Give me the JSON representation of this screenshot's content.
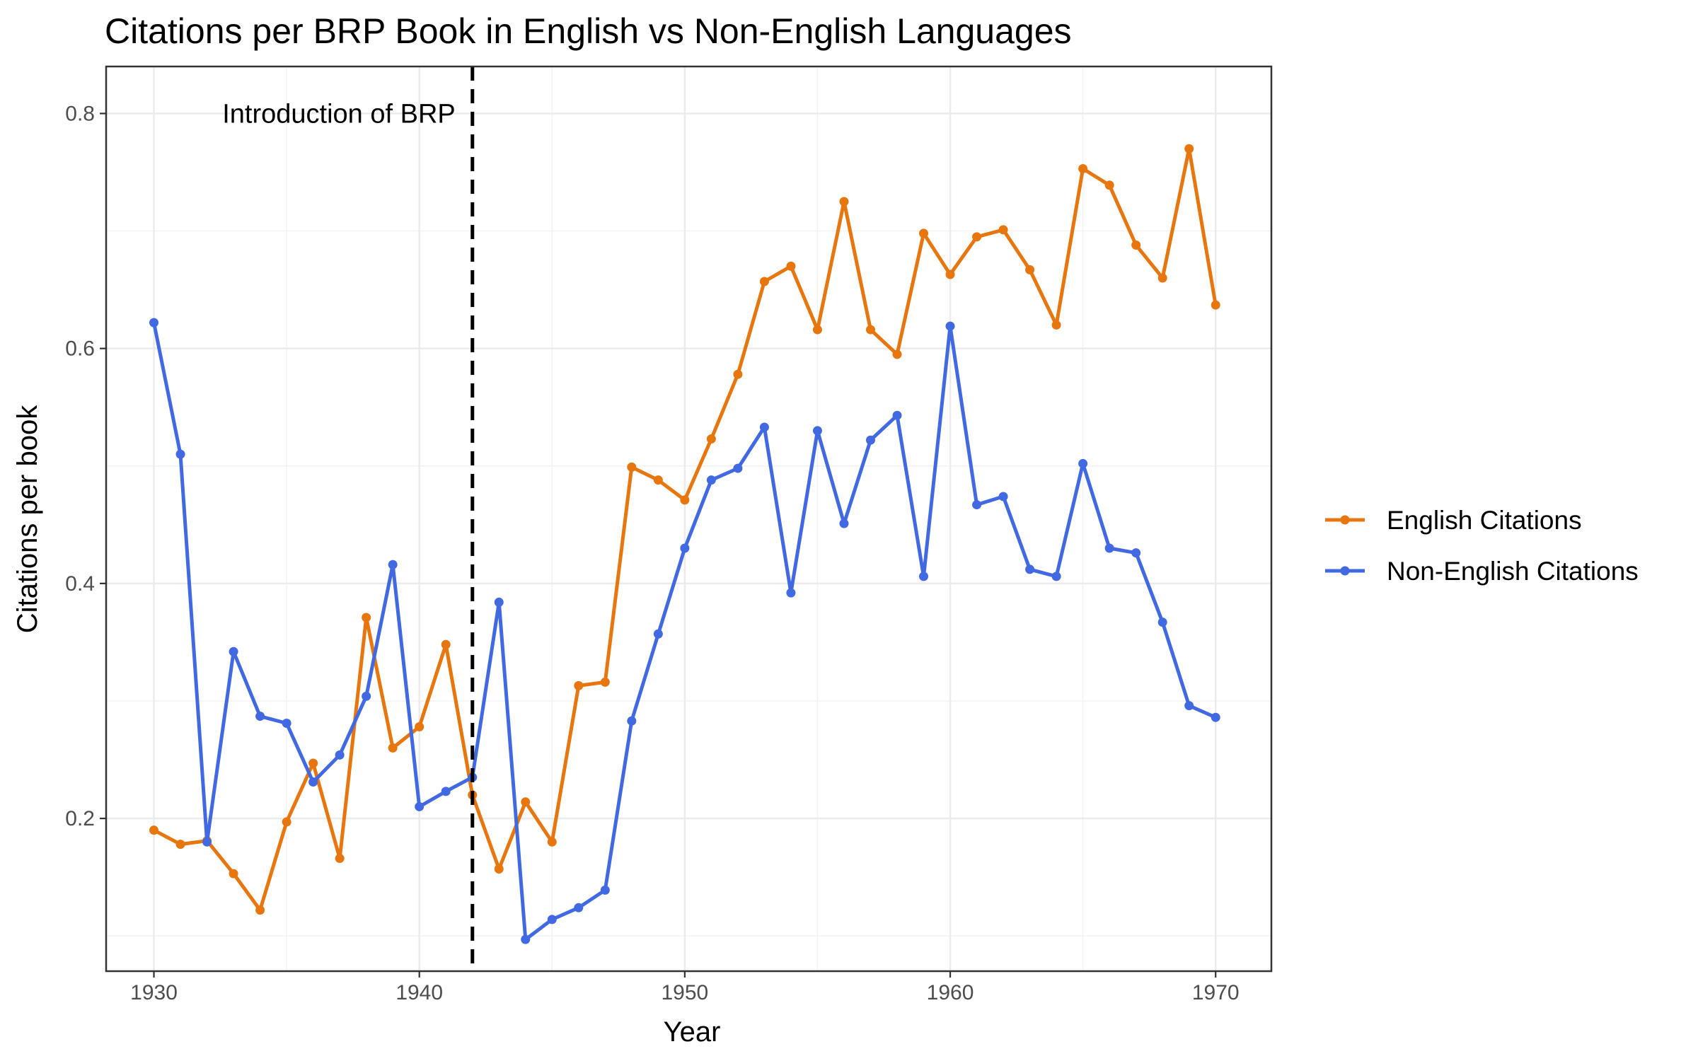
{
  "chart_data": {
    "type": "line",
    "title": "Citations per BRP Book in English vs Non-English Languages",
    "xlabel": "Year",
    "ylabel": "Citations per book",
    "xlim": [
      1928.2,
      1972.1
    ],
    "ylim": [
      0.07,
      0.84
    ],
    "x_ticks": [
      1930,
      1940,
      1950,
      1960,
      1970
    ],
    "y_ticks": [
      0.2,
      0.4,
      0.6,
      0.8
    ],
    "grid": true,
    "legend_position": "right",
    "reference_line": {
      "x": 1942,
      "style": "dashed",
      "label": "Introduction of BRP"
    },
    "x": [
      1930,
      1931,
      1932,
      1933,
      1934,
      1935,
      1936,
      1937,
      1938,
      1939,
      1940,
      1941,
      1942,
      1943,
      1944,
      1945,
      1946,
      1947,
      1948,
      1949,
      1950,
      1951,
      1952,
      1953,
      1954,
      1955,
      1956,
      1957,
      1958,
      1959,
      1960,
      1961,
      1962,
      1963,
      1964,
      1965,
      1966,
      1967,
      1968,
      1969,
      1970
    ],
    "series": [
      {
        "name": "English Citations",
        "color": "#e8760f",
        "values": [
          0.19,
          0.178,
          0.181,
          0.153,
          0.122,
          0.197,
          0.247,
          0.166,
          0.371,
          0.26,
          0.278,
          0.348,
          0.22,
          0.157,
          0.214,
          0.18,
          0.313,
          0.316,
          0.499,
          0.488,
          0.471,
          0.523,
          0.578,
          0.657,
          0.67,
          0.616,
          0.725,
          0.616,
          0.595,
          0.698,
          0.663,
          0.695,
          0.701,
          0.667,
          0.62,
          0.753,
          0.739,
          0.688,
          0.66,
          0.77,
          0.637
        ]
      },
      {
        "name": "Non-English Citations",
        "color": "#4169e1",
        "values": [
          0.622,
          0.51,
          0.18,
          0.342,
          0.287,
          0.281,
          0.231,
          0.254,
          0.304,
          0.416,
          0.21,
          0.223,
          0.235,
          0.384,
          0.097,
          0.114,
          0.124,
          0.139,
          0.283,
          0.357,
          0.43,
          0.488,
          0.498,
          0.533,
          0.392,
          0.53,
          0.451,
          0.522,
          0.543,
          0.406,
          0.619,
          0.467,
          0.474,
          0.412,
          0.406,
          0.502,
          0.43,
          0.426,
          0.367,
          0.296,
          0.286
        ]
      }
    ]
  }
}
